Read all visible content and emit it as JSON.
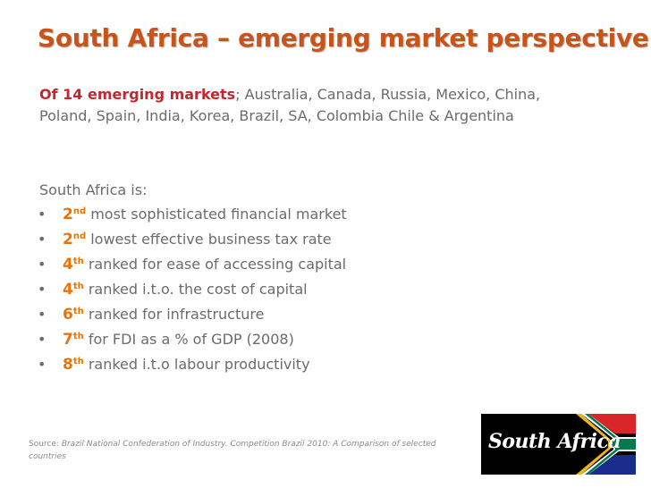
{
  "title": "South Africa – emerging market perspective",
  "intro": {
    "lead": "Of 14 emerging markets",
    "rest": "; Australia, Canada, Russia, Mexico, China, Poland, Spain, India, Korea, Brazil, SA, Colombia Chile & Argentina"
  },
  "south_africa_is": "South Africa is:",
  "bullet_glyph": "•",
  "rankings": [
    {
      "num": "2",
      "suffix": "nd",
      "text": " most sophisticated financial market"
    },
    {
      "num": "2",
      "suffix": "nd",
      "text": " lowest effective business tax rate"
    },
    {
      "num": "4",
      "suffix": "th",
      "text": " ranked for ease of accessing capital"
    },
    {
      "num": "4",
      "suffix": "th",
      "text": " ranked i.t.o. the cost of capital"
    },
    {
      "num": "6",
      "suffix": "th",
      "text": " ranked for infrastructure"
    },
    {
      "num": "7",
      "suffix": "th",
      "text": " for FDI as a % of GDP (2008)"
    },
    {
      "num": "8",
      "suffix": "th",
      "text": " ranked i.t.o labour productivity"
    }
  ],
  "source": {
    "label": "Source: ",
    "text": "Brazil National Confederation of Industry.  Competition Brazil 2010: A Comparison of selected countries"
  },
  "logo": {
    "text": "South Africa",
    "colors": {
      "black": "#000000",
      "gold": "#f2b41b",
      "green": "#007a4d",
      "red": "#d8262b",
      "blue": "#1a2d8c",
      "white": "#ffffff"
    }
  },
  "colors": {
    "title": "#c8541a",
    "lead": "#c0282d",
    "rank": "#e8730c",
    "body": "#6b6b6b"
  }
}
